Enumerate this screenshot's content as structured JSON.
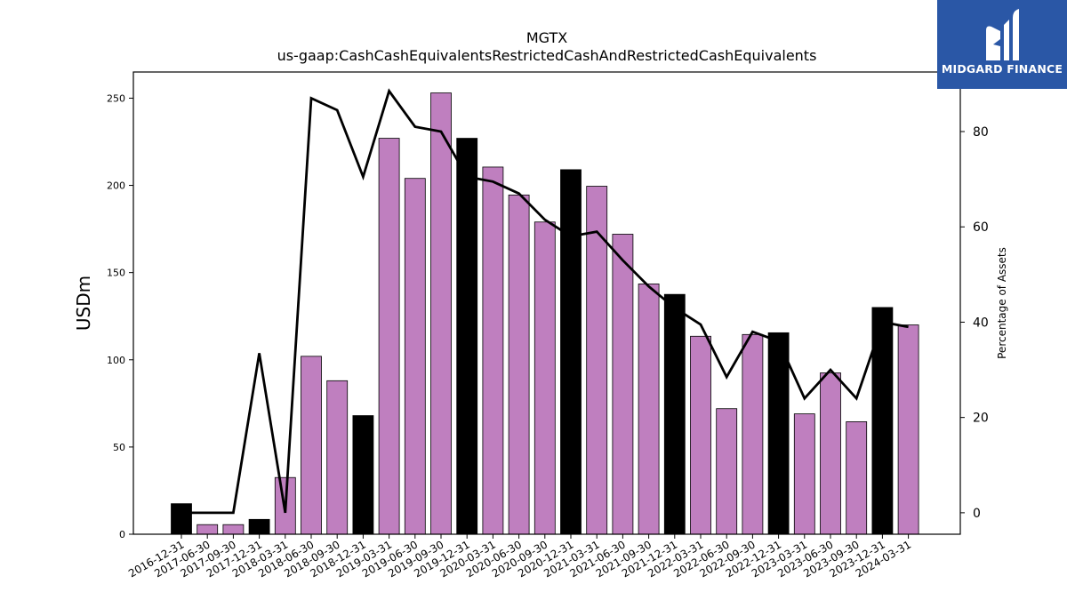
{
  "chart_data": {
    "type": "bar",
    "title": "MGTX",
    "subtitle": "us-gaap:CashCashEquivalentsRestrictedCashAndRestrictedCashEquivalents",
    "ylabel": "USDm",
    "y2label": "Percentage of Assets",
    "ylim": [
      0,
      265
    ],
    "y2lim": [
      -4.5,
      92.5
    ],
    "yticks": [
      0,
      50,
      100,
      150,
      200,
      250
    ],
    "y2ticks": [
      0,
      20,
      40,
      60,
      80
    ],
    "categories": [
      "2016-12-31",
      "2017-06-30",
      "2017-09-30",
      "2017-12-31",
      "2018-03-31",
      "2018-06-30",
      "2018-09-30",
      "2018-12-31",
      "2019-03-31",
      "2019-06-30",
      "2019-09-30",
      "2019-12-31",
      "2020-03-31",
      "2020-06-30",
      "2020-09-30",
      "2020-12-31",
      "2021-03-31",
      "2021-06-30",
      "2021-09-30",
      "2021-12-31",
      "2022-03-31",
      "2022-06-30",
      "2022-09-30",
      "2022-12-31",
      "2023-03-31",
      "2023-06-30",
      "2023-09-30",
      "2023-12-31",
      "2024-03-31"
    ],
    "series": [
      {
        "values": [
          17.5,
          5.5,
          5.5,
          8.5,
          32.5,
          102,
          88,
          68,
          227,
          204,
          253,
          227,
          210.5,
          194.5,
          179,
          209,
          199.5,
          172,
          143.5,
          137.5,
          113.5,
          72,
          114.5,
          115.5,
          69,
          92.5,
          64.5,
          130,
          120
        ],
        "bar_colors": [
          "#000000",
          "#bf7fbf",
          "#bf7fbf",
          "#000000",
          "#bf7fbf",
          "#bf7fbf",
          "#bf7fbf",
          "#000000",
          "#bf7fbf",
          "#bf7fbf",
          "#bf7fbf",
          "#000000",
          "#bf7fbf",
          "#bf7fbf",
          "#bf7fbf",
          "#000000",
          "#bf7fbf",
          "#bf7fbf",
          "#bf7fbf",
          "#000000",
          "#bf7fbf",
          "#bf7fbf",
          "#bf7fbf",
          "#000000",
          "#bf7fbf",
          "#bf7fbf",
          "#bf7fbf",
          "#000000",
          "#bf7fbf"
        ]
      },
      {
        "axis": "right",
        "type": "line",
        "values": [
          0,
          0,
          0,
          33.5,
          0,
          87,
          84.5,
          70.5,
          88.5,
          81,
          80,
          70.5,
          69.5,
          67,
          61.5,
          58,
          59,
          53,
          47.5,
          43,
          39.5,
          28.5,
          38,
          36,
          24,
          30,
          24,
          40,
          39
        ],
        "color": "#000000"
      }
    ],
    "grid": false,
    "legend": "none"
  },
  "brand": {
    "name": "MIDGARD FINANCE",
    "bg_color": "#2a57a6"
  }
}
